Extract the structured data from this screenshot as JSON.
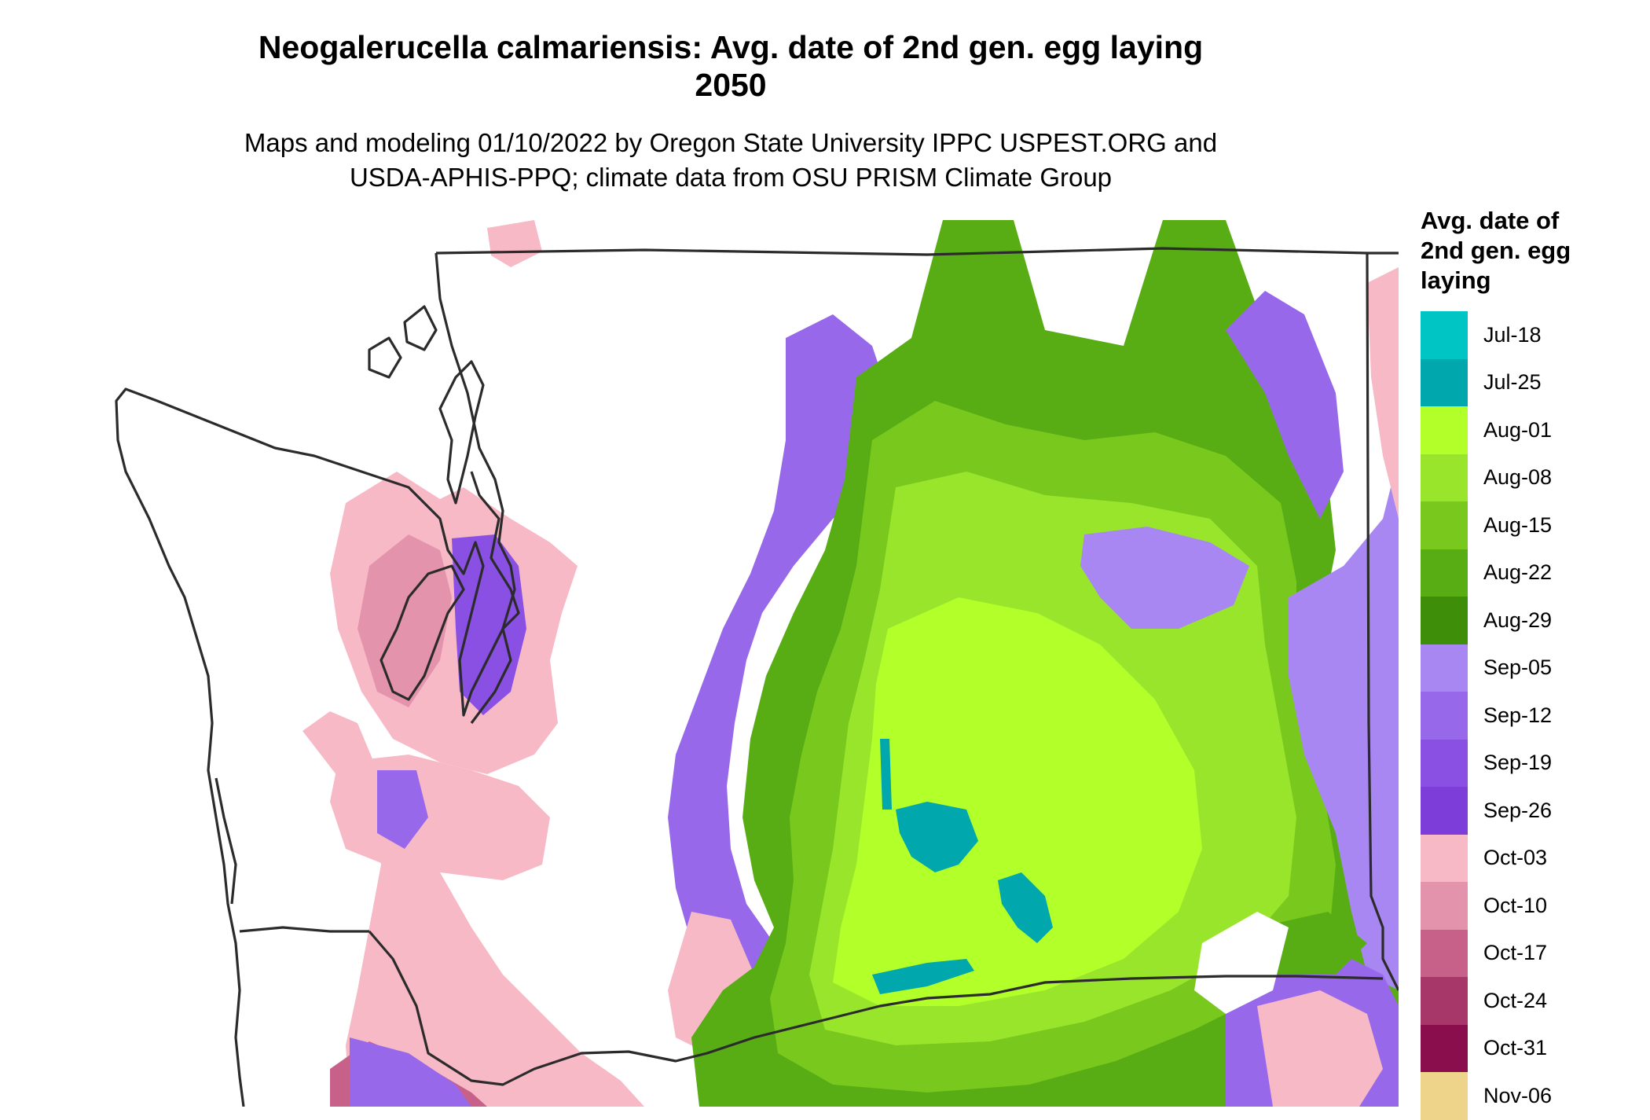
{
  "map": {
    "title_line1": "Neogalerucella calmariensis: Avg. date of 2nd gen. egg laying",
    "title_line2": "2050",
    "subtitle_line1": "Maps and modeling 01/10/2022 by Oregon State University IPPC USPEST.ORG and",
    "subtitle_line2": "USDA-APHIS-PPQ; climate data from OSU PRISM Climate Group"
  },
  "legend": {
    "title_line1": "Avg. date of",
    "title_line2": "2nd gen. egg",
    "title_line3": "laying",
    "items": [
      {
        "label": "Jul-18",
        "color": "#00C5C5"
      },
      {
        "label": "Jul-25",
        "color": "#00A8AD"
      },
      {
        "label": "Aug-01",
        "color": "#B2FF2A"
      },
      {
        "label": "Aug-08",
        "color": "#99E52C"
      },
      {
        "label": "Aug-15",
        "color": "#78C81E"
      },
      {
        "label": "Aug-22",
        "color": "#58AD14"
      },
      {
        "label": "Aug-29",
        "color": "#3E8E0A"
      },
      {
        "label": "Sep-05",
        "color": "#A887F3"
      },
      {
        "label": "Sep-12",
        "color": "#9868EB"
      },
      {
        "label": "Sep-19",
        "color": "#8A50E3"
      },
      {
        "label": "Sep-26",
        "color": "#7C3DD9"
      },
      {
        "label": "Oct-03",
        "color": "#F8B9C6"
      },
      {
        "label": "Oct-10",
        "color": "#E493AD"
      },
      {
        "label": "Oct-17",
        "color": "#C86189"
      },
      {
        "label": "Oct-24",
        "color": "#A83769"
      },
      {
        "label": "Oct-31",
        "color": "#8A0D4D"
      },
      {
        "label": "Nov-06",
        "color": "#EED48A"
      }
    ]
  }
}
